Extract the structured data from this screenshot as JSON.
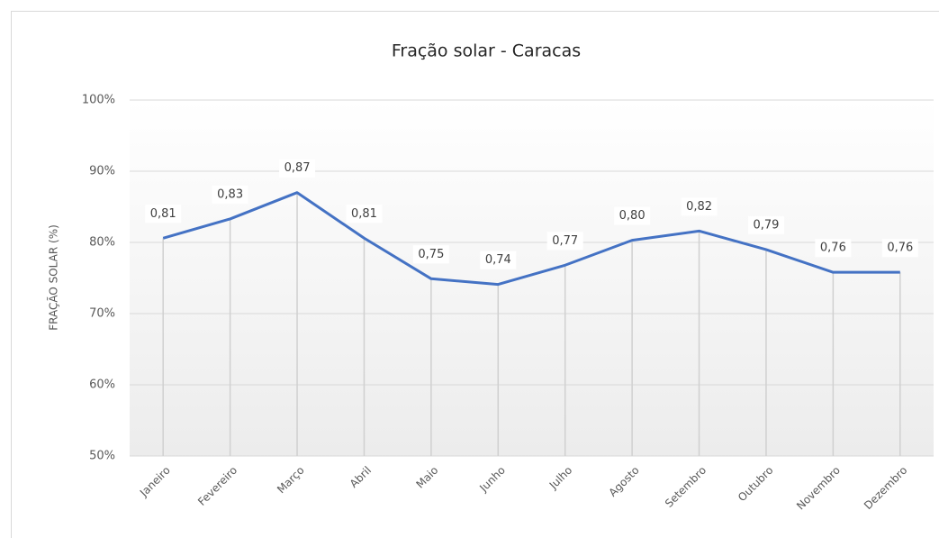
{
  "chart_data": {
    "type": "line",
    "title": "Fração solar - Caracas",
    "y_label": "FRAÇÃO SOLAR (%)",
    "categories": [
      "Janeiro",
      "Fevereiro",
      "Março",
      "Abril",
      "Maio",
      "Junho",
      "Julho",
      "Agosto",
      "Setembro",
      "Outubro",
      "Novembro",
      "Dezembro"
    ],
    "series": [
      {
        "name": "Fração solar",
        "color": "#4472c4",
        "values": [
          80.6,
          83.3,
          87.0,
          80.6,
          74.9,
          74.1,
          76.8,
          80.3,
          81.6,
          79.0,
          75.8,
          75.8
        ],
        "value_labels": [
          "0,81",
          "0,83",
          "0,87",
          "0,81",
          "0,75",
          "0,74",
          "0,77",
          "0,80",
          "0,82",
          "0,79",
          "0,76",
          "0,76"
        ]
      }
    ],
    "ylim": [
      50,
      100
    ],
    "yticks": [
      {
        "value": 50,
        "label": "50%"
      },
      {
        "value": 60,
        "label": "60%"
      },
      {
        "value": 70,
        "label": "70%"
      },
      {
        "value": 80,
        "label": "80%"
      },
      {
        "value": 90,
        "label": "90%"
      },
      {
        "value": 100,
        "label": "100%"
      }
    ],
    "grid": true
  }
}
